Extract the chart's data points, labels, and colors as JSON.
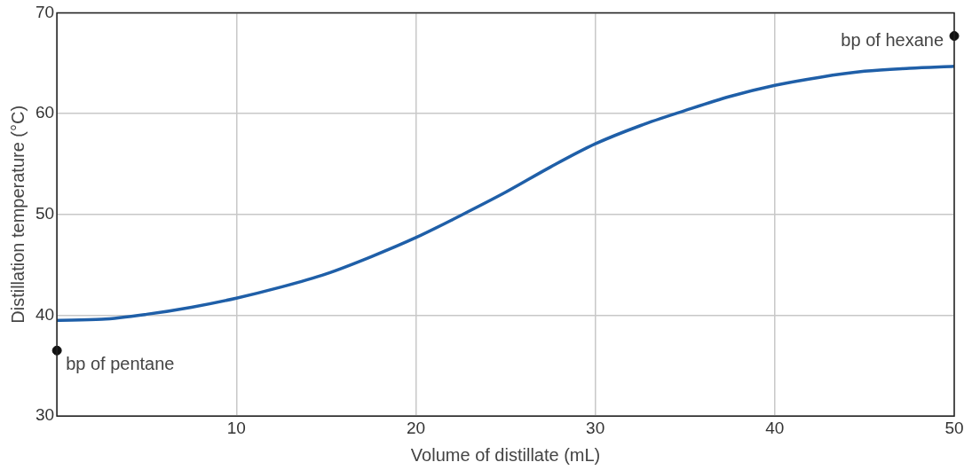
{
  "chart_data": {
    "type": "line",
    "xlabel": "Volume of distillate (mL)",
    "ylabel": "Distillation temperature (°C)",
    "xlim": [
      0,
      50
    ],
    "xticks": [
      {
        "value": 0,
        "label": null
      },
      10,
      20,
      30,
      40,
      50
    ],
    "ylim": [
      30,
      70
    ],
    "yticks": [
      30,
      40,
      50,
      60,
      70
    ],
    "grid": true,
    "legend": false,
    "marker": "none",
    "series": [
      {
        "color": "#1f5fa8",
        "x": [
          0,
          2.5,
          5,
          7.5,
          10,
          12.5,
          15,
          17.5,
          20,
          22.5,
          25,
          27.5,
          30,
          32.5,
          35,
          37.5,
          40,
          42.5,
          45,
          47.5,
          50
        ],
        "values": [
          39.5,
          39.6,
          40.1,
          40.8,
          41.7,
          42.8,
          44.1,
          45.8,
          47.7,
          49.9,
          52.2,
          54.7,
          57,
          58.8,
          60.3,
          61.7,
          62.8,
          63.6,
          64.2,
          64.5,
          64.7
        ]
      },
      {
        "type": "scatter",
        "color": "#111111",
        "marker": "circle",
        "x": [
          0,
          50
        ],
        "values": [
          36.5,
          67.7
        ]
      }
    ],
    "annotations": [
      {
        "text": "bp of pentane",
        "x": 0,
        "y": 36.5
      },
      {
        "text": "bp of hexane",
        "x": 50,
        "y": 67.7
      }
    ]
  }
}
